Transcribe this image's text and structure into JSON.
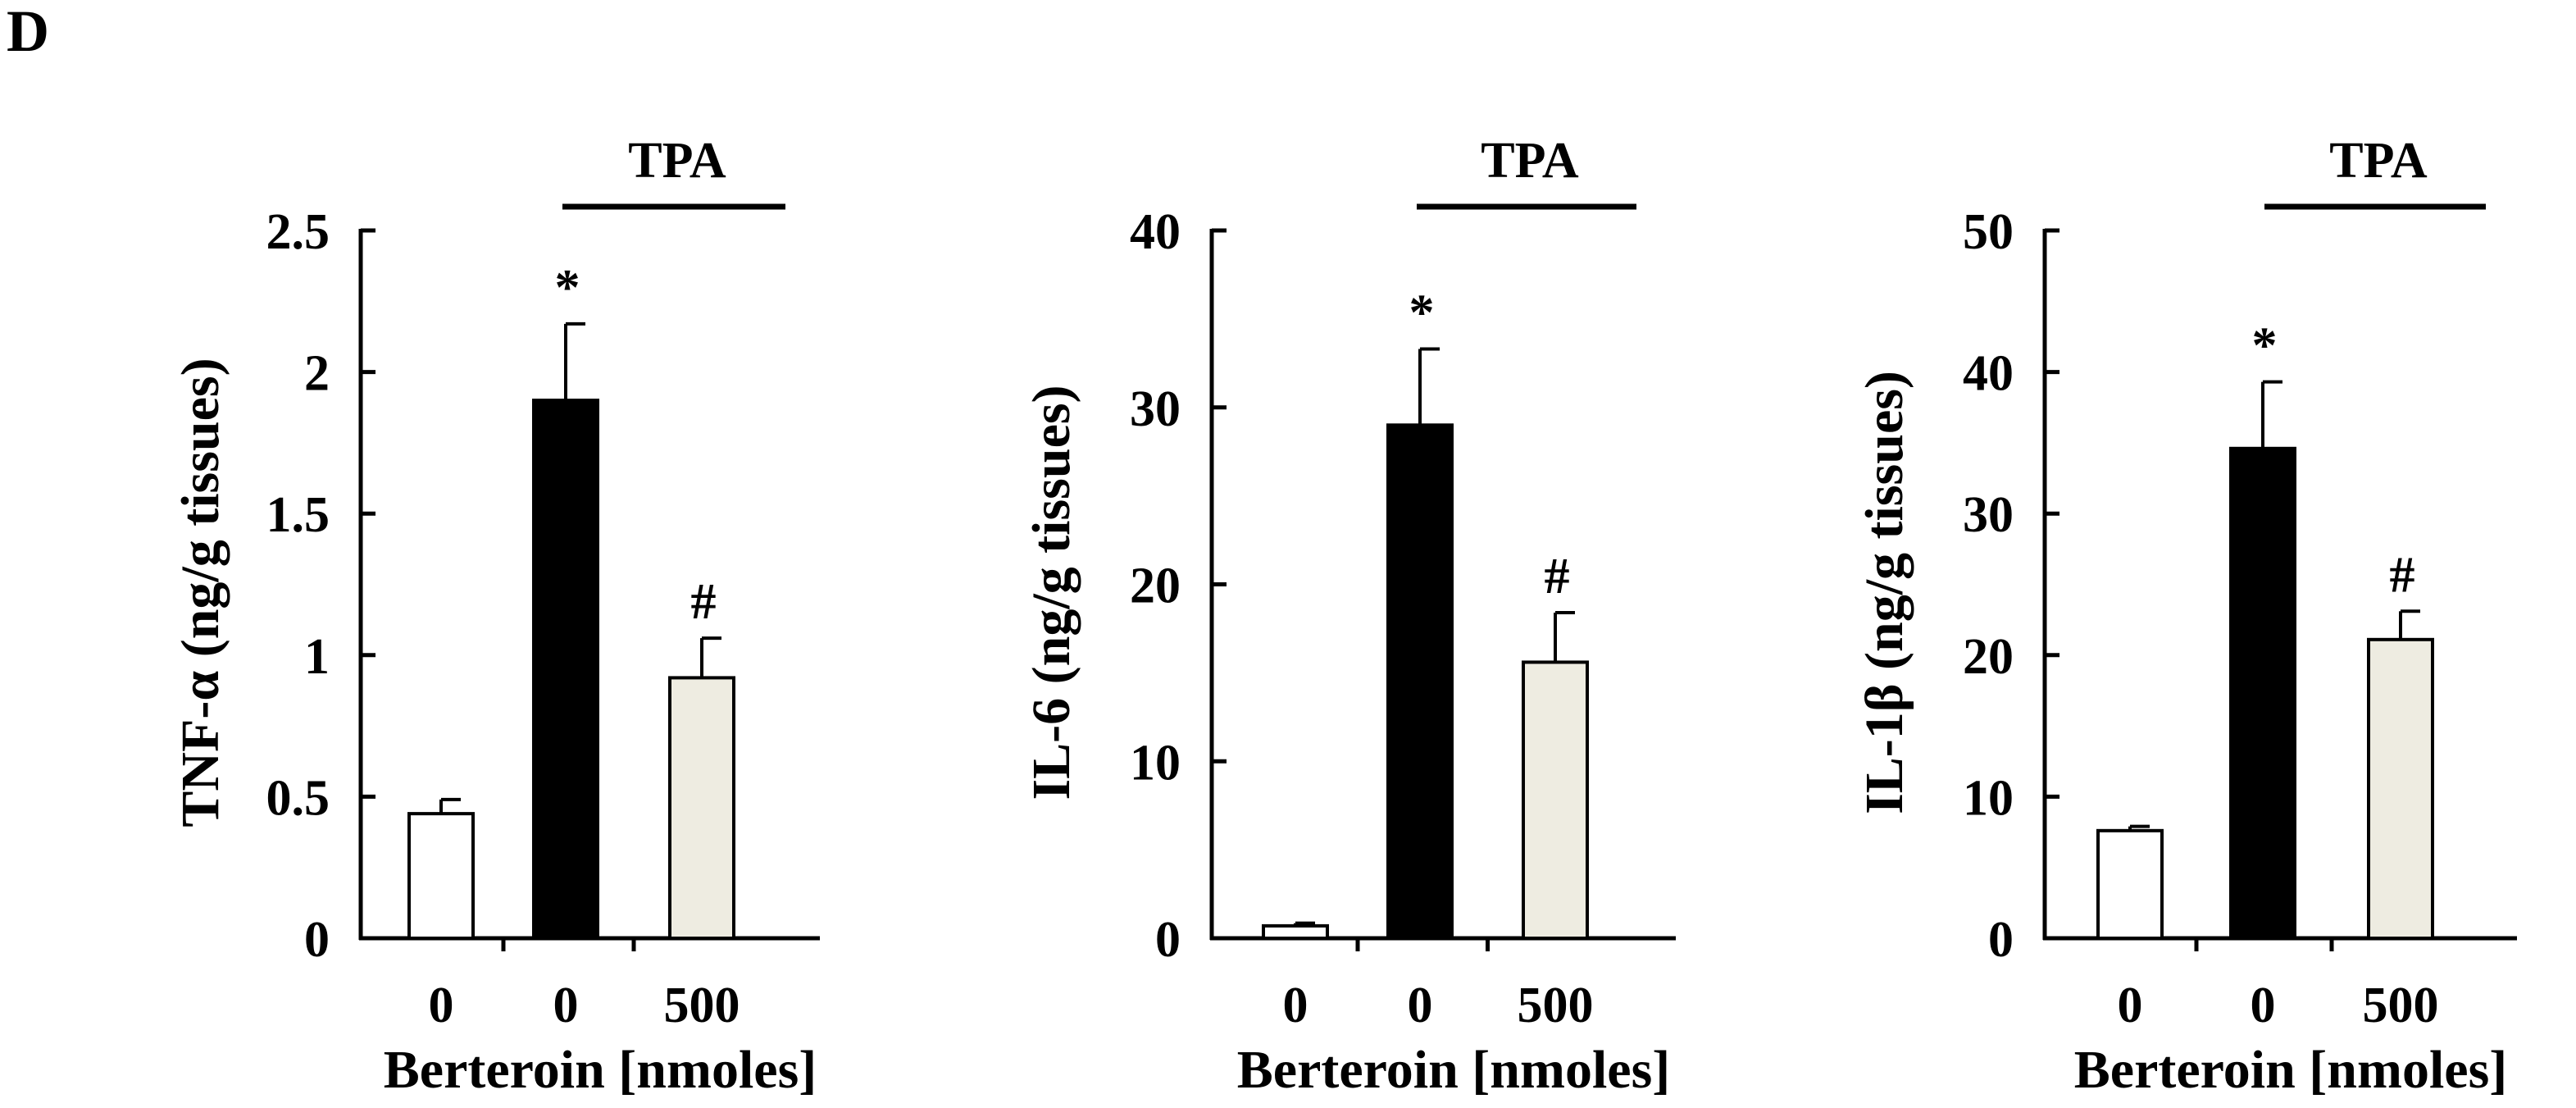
{
  "panel_label": "D",
  "colors": {
    "control": "#ffffff",
    "tpa": "#000000",
    "treated": "#eeece1",
    "axis": "#000000"
  },
  "chart_data": [
    {
      "type": "bar",
      "title": "",
      "ylabel": "TNF-α (ng/g tissues)",
      "xlabel": "Berteroin [nmoles]",
      "categories": [
        "0",
        "0",
        "500"
      ],
      "values": [
        0.44,
        1.9,
        0.92
      ],
      "errors": [
        0.05,
        0.27,
        0.14
      ],
      "annotations": [
        "",
        "*",
        "#"
      ],
      "ylim": [
        0,
        2.5
      ],
      "yticks": [
        0,
        0.5,
        1,
        1.5,
        2,
        2.5
      ],
      "ytick_labels": [
        "0",
        "0.5",
        "1",
        "1.5",
        "2",
        "2.5"
      ],
      "group_label": "TPA",
      "grid": false
    },
    {
      "type": "bar",
      "title": "",
      "ylabel": "IL-6 (ng/g tissues)",
      "xlabel": "Berteroin [nmoles]",
      "categories": [
        "0",
        "0",
        "500"
      ],
      "values": [
        0.7,
        29,
        15.6
      ],
      "errors": [
        0.15,
        4.3,
        2.8
      ],
      "annotations": [
        "",
        "*",
        "#"
      ],
      "ylim": [
        0,
        40
      ],
      "yticks": [
        0,
        10,
        20,
        30,
        40
      ],
      "ytick_labels": [
        "0",
        "10",
        "20",
        "30",
        "40"
      ],
      "group_label": "TPA",
      "grid": false
    },
    {
      "type": "bar",
      "title": "",
      "ylabel": "IL-1β (ng/g tissues)",
      "xlabel": "Berteroin [nmoles]",
      "categories": [
        "0",
        "0",
        "500"
      ],
      "values": [
        7.6,
        34.6,
        21.1
      ],
      "errors": [
        0.3,
        4.7,
        2.0
      ],
      "annotations": [
        "",
        "*",
        "#"
      ],
      "ylim": [
        0,
        50
      ],
      "yticks": [
        0,
        10,
        20,
        30,
        40,
        50
      ],
      "ytick_labels": [
        "0",
        "10",
        "20",
        "30",
        "40",
        "50"
      ],
      "group_label": "TPA",
      "grid": false
    }
  ]
}
